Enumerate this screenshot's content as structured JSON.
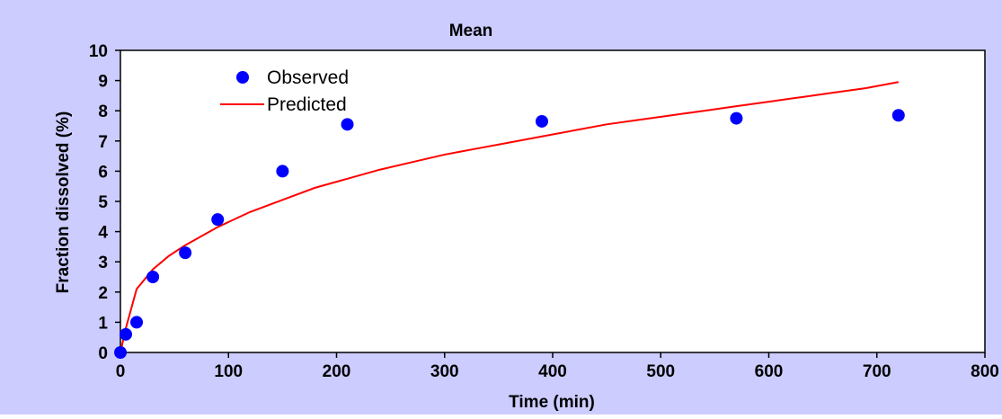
{
  "chart_data": {
    "type": "scatter",
    "title": "Mean",
    "xlabel": "Time (min)",
    "ylabel": "Fraction dissolved (%)",
    "xlim": [
      0,
      800
    ],
    "ylim": [
      0,
      10
    ],
    "xticks": [
      0,
      100,
      200,
      300,
      400,
      500,
      600,
      700,
      800
    ],
    "yticks": [
      0,
      1,
      2,
      3,
      4,
      5,
      6,
      7,
      8,
      9,
      10
    ],
    "grid": false,
    "legend_position": "top-left",
    "series": [
      {
        "name": "Observed",
        "kind": "scatter",
        "color": "#0000ff",
        "x": [
          0,
          5,
          15,
          30,
          60,
          90,
          150,
          210,
          390,
          570,
          720
        ],
        "y": [
          0.0,
          0.6,
          1.0,
          2.5,
          3.3,
          4.4,
          6.0,
          7.55,
          7.65,
          7.75,
          7.85
        ]
      },
      {
        "name": "Predicted",
        "kind": "line",
        "color": "#ff0000",
        "x": [
          0,
          5,
          15,
          30,
          45,
          60,
          90,
          120,
          150,
          180,
          210,
          240,
          270,
          300,
          330,
          360,
          390,
          420,
          450,
          480,
          510,
          540,
          570,
          600,
          630,
          660,
          690,
          720
        ],
        "y": [
          0,
          0.8,
          2.1,
          2.75,
          3.2,
          3.55,
          4.15,
          4.65,
          5.05,
          5.45,
          5.75,
          6.05,
          6.3,
          6.55,
          6.75,
          6.95,
          7.15,
          7.35,
          7.55,
          7.7,
          7.85,
          8.0,
          8.15,
          8.3,
          8.45,
          8.6,
          8.75,
          8.95
        ]
      }
    ]
  }
}
